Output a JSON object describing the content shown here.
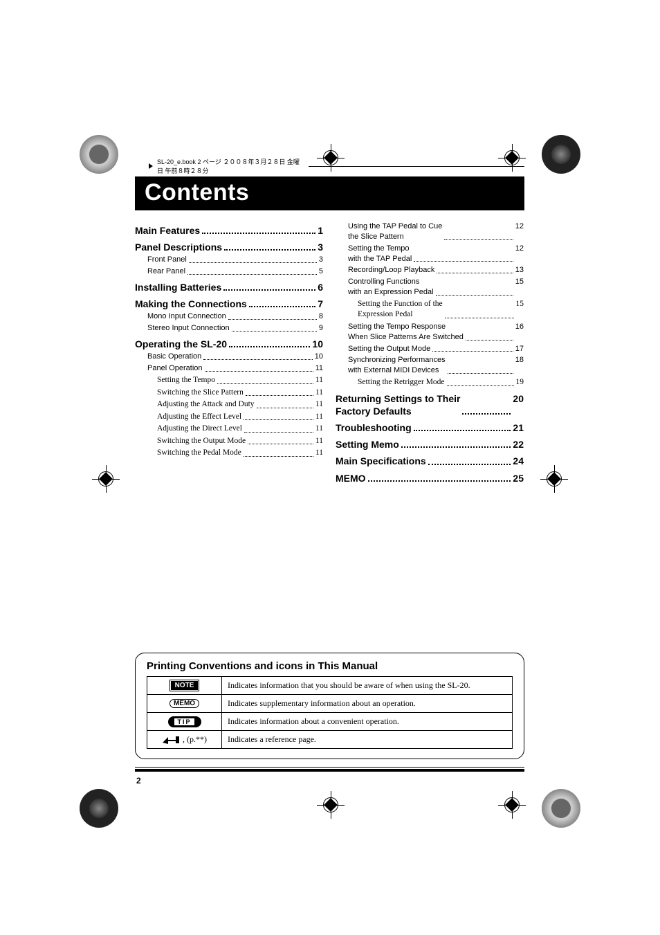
{
  "header": "SL-20_e.book 2 ページ ２００８年３月２８日 金曜日 午前８時２８分",
  "title": "Contents",
  "page_number": "2",
  "toc_left": [
    {
      "level": 1,
      "label": "Main Features",
      "page": "1"
    },
    {
      "level": 1,
      "label": "Panel Descriptions",
      "page": "3"
    },
    {
      "level": 2,
      "label": "Front Panel",
      "page": "3"
    },
    {
      "level": 2,
      "label": "Rear Panel",
      "page": "5"
    },
    {
      "level": 1,
      "label": "Installing Batteries",
      "page": "6"
    },
    {
      "level": 1,
      "label": "Making the Connections",
      "page": "7"
    },
    {
      "level": 2,
      "label": "Mono Input Connection",
      "page": "8"
    },
    {
      "level": 2,
      "label": "Stereo Input Connection",
      "page": "9"
    },
    {
      "level": 1,
      "label": "Operating the SL-20",
      "page": "10"
    },
    {
      "level": 2,
      "label": "Basic Operation",
      "page": "10"
    },
    {
      "level": 2,
      "label": "Panel Operation",
      "page": "11"
    },
    {
      "level": 3,
      "label": "Setting the Tempo",
      "page": "11"
    },
    {
      "level": 3,
      "label": "Switching the Slice Pattern",
      "page": "11"
    },
    {
      "level": 3,
      "label": "Adjusting the Attack and Duty",
      "page": "11"
    },
    {
      "level": 3,
      "label": "Adjusting the Effect Level",
      "page": "11"
    },
    {
      "level": 3,
      "label": "Adjusting the Direct Level",
      "page": "11"
    },
    {
      "level": 3,
      "label": "Switching the Output Mode",
      "page": "11"
    },
    {
      "level": 3,
      "label": "Switching the Pedal Mode",
      "page": "11"
    }
  ],
  "toc_right": [
    {
      "level": 2,
      "label": "Using the TAP Pedal to Cue\nthe Slice Pattern",
      "page": "12"
    },
    {
      "level": 2,
      "label": "Setting the Tempo\nwith the TAP Pedal",
      "page": "12"
    },
    {
      "level": 2,
      "label": "Recording/Loop Playback",
      "page": "13"
    },
    {
      "level": 2,
      "label": "Controlling Functions\nwith an Expression Pedal",
      "page": "15"
    },
    {
      "level": 3,
      "label": "Setting the Function of the\nExpression Pedal",
      "page": "15"
    },
    {
      "level": 2,
      "label": "Setting the Tempo Response\nWhen Slice Patterns Are Switched",
      "page": "16"
    },
    {
      "level": 2,
      "label": "Setting the Output Mode",
      "page": "17"
    },
    {
      "level": 2,
      "label": "Synchronizing Performances\nwith External MIDI Devices",
      "page": "18"
    },
    {
      "level": 3,
      "label": "Setting the Retrigger Mode",
      "page": "19"
    },
    {
      "level": 1,
      "label": "Returning Settings to Their\nFactory Defaults",
      "page": "20"
    },
    {
      "level": 1,
      "label": "Troubleshooting",
      "page": "21"
    },
    {
      "level": 1,
      "label": "Setting Memo",
      "page": "22"
    },
    {
      "level": 1,
      "label": "Main Specifications",
      "page": "24"
    },
    {
      "level": 1,
      "label": "MEMO",
      "page": "25"
    }
  ],
  "conventions": {
    "title": "Printing Conventions and icons in This Manual",
    "rows": [
      {
        "icon": "NOTE",
        "text": "Indicates information that you should be aware of when using the SL-20."
      },
      {
        "icon": "MEMO",
        "text": "Indicates supplementary information about an operation."
      },
      {
        "icon": "TIP",
        "text": "Indicates information about a convenient operation."
      },
      {
        "icon": "REF",
        "ref_suffix": ", (p.**)",
        "text": "Indicates a reference page."
      }
    ]
  },
  "colors": {
    "black": "#000000",
    "white": "#ffffff"
  }
}
